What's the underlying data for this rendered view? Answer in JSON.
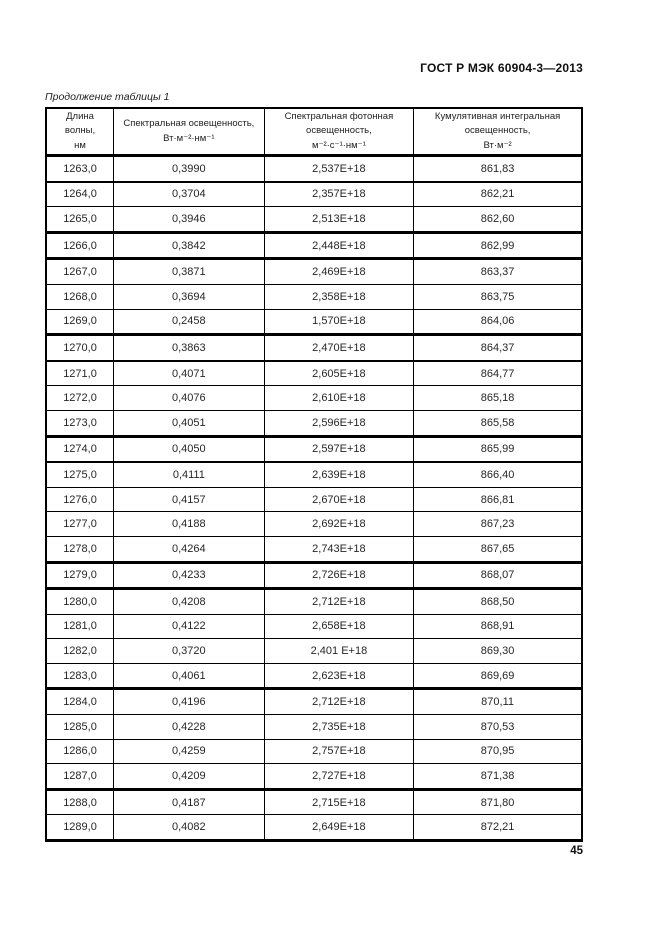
{
  "page": {
    "header_title": "ГОСТ Р МЭК 60904-3—2013",
    "table_caption": "Продолжение таблицы 1",
    "page_number": "45"
  },
  "table": {
    "columns": [
      {
        "label": "Длина\nволны,\nнм"
      },
      {
        "label": "Спектральная освещенность,\nВт·м⁻²·нм⁻¹"
      },
      {
        "label": "Спектральная фотонная\nосвещенность,\nм⁻²·с⁻¹·нм⁻¹"
      },
      {
        "label": "Кумулятивная интегральная\nосвещенность,\nВт·м⁻²"
      }
    ],
    "rows": [
      [
        "1263,0",
        "0,3990",
        "2,537E+18",
        "861,83"
      ],
      [
        "1264,0",
        "0,3704",
        "2,357E+18",
        "862,21"
      ],
      [
        "1265,0",
        "0,3946",
        "2,513E+18",
        "862,60"
      ],
      [
        "1266,0",
        "0,3842",
        "2,448E+18",
        "862,99"
      ],
      [
        "1267,0",
        "0,3871",
        "2,469E+18",
        "863,37"
      ],
      [
        "1268,0",
        "0,3694",
        "2,358E+18",
        "863,75"
      ],
      [
        "1269,0",
        "0,2458",
        "1,570E+18",
        "864,06"
      ],
      [
        "1270,0",
        "0,3863",
        "2,470E+18",
        "864,37"
      ],
      [
        "1271,0",
        "0,4071",
        "2,605E+18",
        "864,77"
      ],
      [
        "1272,0",
        "0,4076",
        "2,610E+18",
        "865,18"
      ],
      [
        "1273,0",
        "0,4051",
        "2,596E+18",
        "865,58"
      ],
      [
        "1274,0",
        "0,4050",
        "2,597E+18",
        "865,99"
      ],
      [
        "1275,0",
        "0,4111",
        "2,639E+18",
        "866,40"
      ],
      [
        "1276,0",
        "0,4157",
        "2,670E+18",
        "866,81"
      ],
      [
        "1277,0",
        "0,4188",
        "2,692E+18",
        "867,23"
      ],
      [
        "1278,0",
        "0,4264",
        "2,743E+18",
        "867,65"
      ],
      [
        "1279,0",
        "0,4233",
        "2,726E+18",
        "868,07"
      ],
      [
        "1280,0",
        "0,4208",
        "2,712E+18",
        "868,50"
      ],
      [
        "1281,0",
        "0,4122",
        "2,658E+18",
        "868,91"
      ],
      [
        "1282,0",
        "0,3720",
        "2,401 E+18",
        "869,30"
      ],
      [
        "1283,0",
        "0,4061",
        "2,623E+18",
        "869,69"
      ],
      [
        "1284,0",
        "0,4196",
        "2,712E+18",
        "870,11"
      ],
      [
        "1285,0",
        "0,4228",
        "2,735E+18",
        "870,53"
      ],
      [
        "1286,0",
        "0,4259",
        "2,757E+18",
        "870,95"
      ],
      [
        "1287,0",
        "0,4209",
        "2,727E+18",
        "871,38"
      ],
      [
        "1288,0",
        "0,4187",
        "2,715E+18",
        "871,80"
      ],
      [
        "1289,0",
        "0,4082",
        "2,649E+18",
        "872,21"
      ]
    ]
  }
}
